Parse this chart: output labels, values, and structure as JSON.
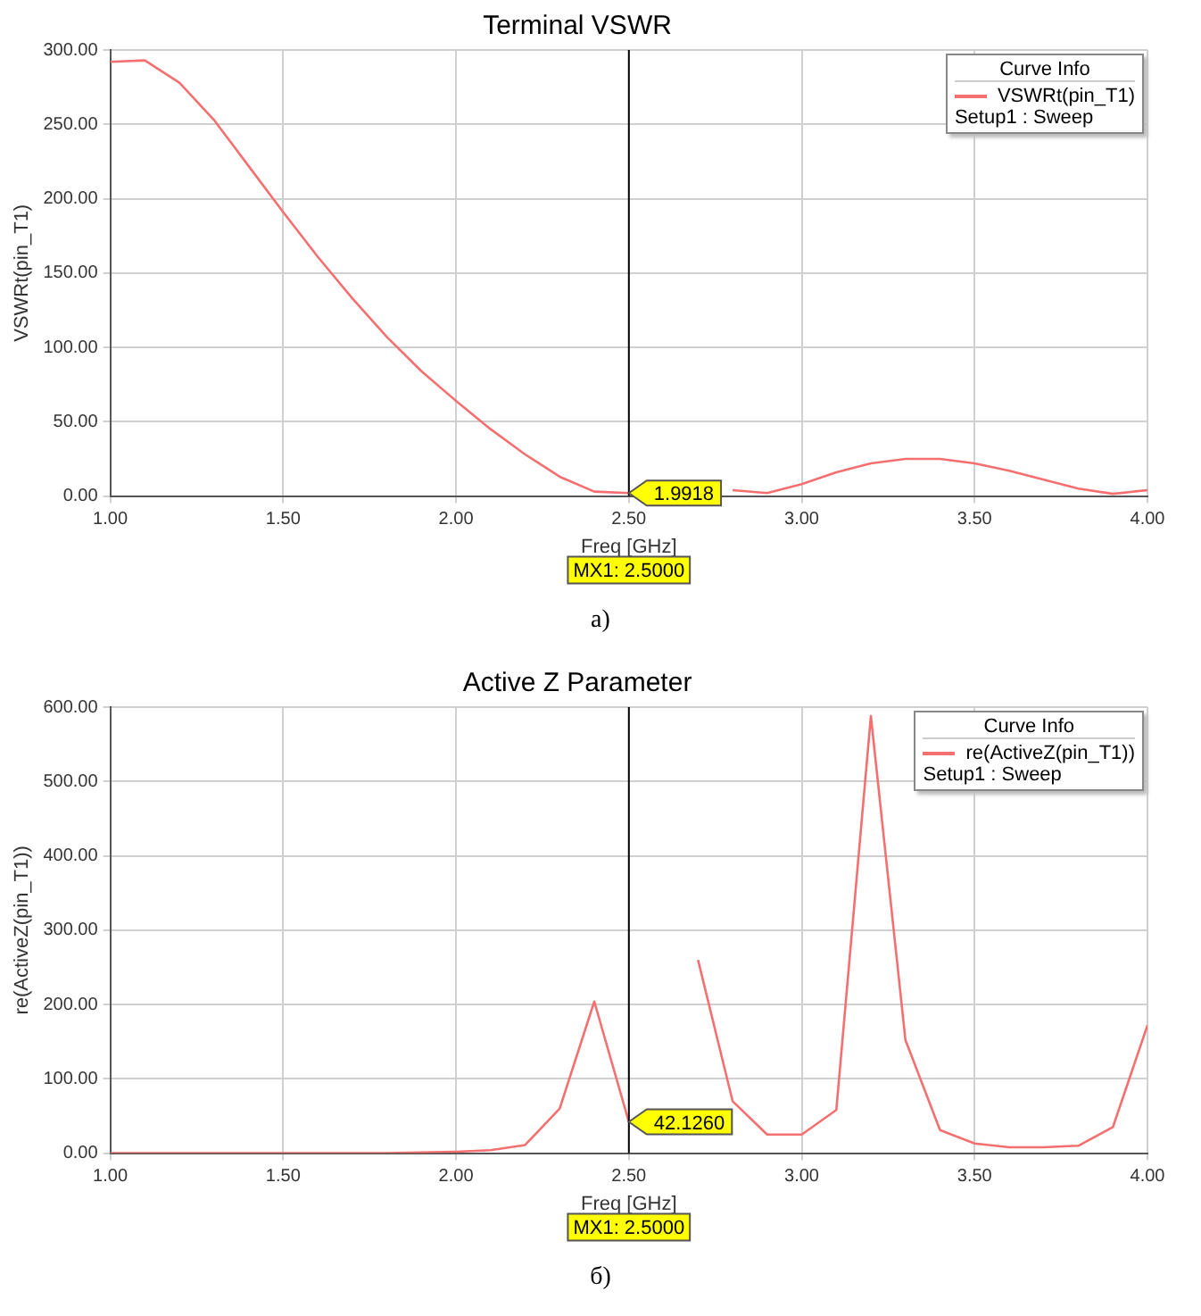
{
  "chart_data": [
    {
      "type": "line",
      "title": "Terminal VSWR",
      "xlabel": "Freq [GHz]",
      "ylabel": "VSWRt(pin_T1)",
      "legend_title": "Curve Info",
      "x": [
        1.0,
        1.1,
        1.2,
        1.3,
        1.4,
        1.5,
        1.6,
        1.7,
        1.8,
        1.9,
        2.0,
        2.1,
        2.2,
        2.3,
        2.4,
        2.5,
        2.6,
        2.7,
        2.8,
        2.9,
        3.0,
        3.1,
        3.2,
        3.3,
        3.4,
        3.5,
        3.6,
        3.7,
        3.8,
        3.9,
        4.0
      ],
      "series": [
        {
          "name": "VSWRt(pin_T1)",
          "color": "#f47070",
          "values": [
            292,
            293,
            278,
            253,
            222,
            191,
            161,
            133,
            107,
            84,
            64,
            45,
            28,
            13,
            3,
            1.9918,
            null,
            null,
            4,
            2,
            8,
            16,
            22,
            25,
            25,
            22,
            17,
            11,
            5,
            1.5,
            4
          ]
        }
      ],
      "xlim": [
        1.0,
        4.0
      ],
      "xticks": [
        {
          "value": 1.0,
          "label": "1.00"
        },
        {
          "value": 1.5,
          "label": "1.50"
        },
        {
          "value": 2.0,
          "label": "2.00"
        },
        {
          "value": 2.5,
          "label": "2.50"
        },
        {
          "value": 3.0,
          "label": "3.00"
        },
        {
          "value": 3.5,
          "label": "3.50"
        },
        {
          "value": 4.0,
          "label": "4.00"
        }
      ],
      "ylim": [
        0,
        300
      ],
      "yticks": [
        {
          "value": 0,
          "label": "0.00"
        },
        {
          "value": 50,
          "label": "50.00"
        },
        {
          "value": 100,
          "label": "100.00"
        },
        {
          "value": 150,
          "label": "150.00"
        },
        {
          "value": 200,
          "label": "200.00"
        },
        {
          "value": 250,
          "label": "250.00"
        },
        {
          "value": 300,
          "label": "300.00"
        }
      ],
      "grid": true,
      "legend": "top right",
      "marker": "none",
      "line_style": "solid",
      "ref_lines": [
        {
          "axis": "x",
          "value": 2.5,
          "label": "MX1: 2.5000",
          "color": "#000000"
        }
      ],
      "annotations": [
        {
          "text": "1.9918",
          "x": 2.5,
          "y": 1.9918
        },
        "Setup1 : Sweep",
        "a)"
      ]
    },
    {
      "type": "line",
      "title": "Active Z Parameter",
      "xlabel": "Freq [GHz]",
      "ylabel": "re(ActiveZ(pin_T1))",
      "legend_title": "Curve Info",
      "x": [
        1.0,
        1.1,
        1.2,
        1.3,
        1.4,
        1.5,
        1.6,
        1.7,
        1.8,
        1.9,
        2.0,
        2.1,
        2.2,
        2.3,
        2.4,
        2.5,
        2.6,
        2.7,
        2.8,
        2.9,
        3.0,
        3.1,
        3.2,
        3.3,
        3.4,
        3.5,
        3.6,
        3.7,
        3.8,
        3.9,
        4.0
      ],
      "series": [
        {
          "name": "re(ActiveZ(pin_T1))",
          "color": "#f47070",
          "values": [
            0,
            0,
            0,
            0,
            0,
            0,
            0,
            0,
            0,
            1,
            2,
            4,
            11,
            60,
            204,
            42.126,
            null,
            260,
            70,
            25,
            25,
            58,
            588,
            152,
            31,
            13,
            8,
            8,
            10,
            35,
            172
          ]
        }
      ],
      "xlim": [
        1.0,
        4.0
      ],
      "xticks": [
        {
          "value": 1.0,
          "label": "1.00"
        },
        {
          "value": 1.5,
          "label": "1.50"
        },
        {
          "value": 2.0,
          "label": "2.00"
        },
        {
          "value": 2.5,
          "label": "2.50"
        },
        {
          "value": 3.0,
          "label": "3.00"
        },
        {
          "value": 3.5,
          "label": "3.50"
        },
        {
          "value": 4.0,
          "label": "4.00"
        }
      ],
      "ylim": [
        0,
        600
      ],
      "yticks": [
        {
          "value": 0,
          "label": "0.00"
        },
        {
          "value": 100,
          "label": "100.00"
        },
        {
          "value": 200,
          "label": "200.00"
        },
        {
          "value": 300,
          "label": "300.00"
        },
        {
          "value": 400,
          "label": "400.00"
        },
        {
          "value": 500,
          "label": "500.00"
        },
        {
          "value": 600,
          "label": "600.00"
        }
      ],
      "grid": true,
      "legend": "top right",
      "marker": "none",
      "line_style": "solid",
      "ref_lines": [
        {
          "axis": "x",
          "value": 2.5,
          "label": "MX1: 2.5000",
          "color": "#000000"
        }
      ],
      "annotations": [
        {
          "text": "42.1260",
          "x": 2.5,
          "y": 42.126
        },
        "Setup1 : Sweep",
        "б)"
      ]
    }
  ]
}
